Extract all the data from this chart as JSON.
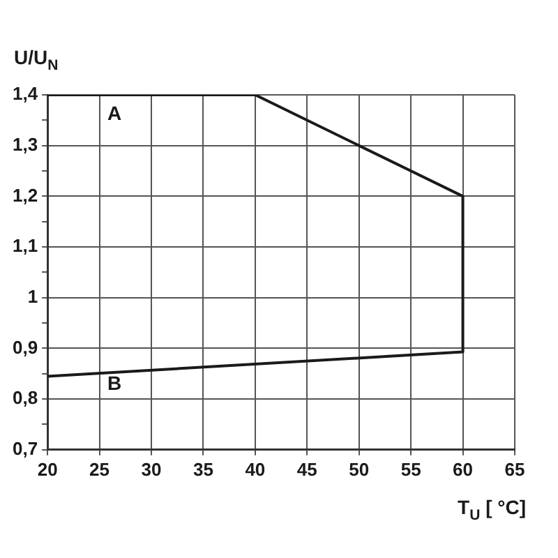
{
  "chart_data": {
    "type": "line",
    "xlabel": "T$_{U}$ [ °C]",
    "ylabel": "U/U$_{N}$",
    "series": [
      {
        "color": "#1a1a1a",
        "x": [
          20,
          60,
          60,
          40,
          20
        ],
        "values": [
          0.845,
          0.893,
          1.2,
          1.4,
          1.4
        ]
      }
    ],
    "xlim": [
      20,
      65
    ],
    "xticks": [
      20,
      25,
      30,
      35,
      40,
      45,
      50,
      55,
      60,
      65
    ],
    "ylim": [
      0.7,
      1.4
    ],
    "yticks": [
      {
        "value": 0.7,
        "label": "0,7"
      },
      {
        "value": 0.75,
        "label": null
      },
      {
        "value": 0.8,
        "label": "0,8"
      },
      {
        "value": 0.85,
        "label": null
      },
      {
        "value": 0.9,
        "label": "0,9"
      },
      {
        "value": 0.95,
        "label": null
      },
      {
        "value": 1,
        "label": "1"
      },
      {
        "value": 1.05,
        "label": null
      },
      {
        "value": 1.1,
        "label": "1,1"
      },
      {
        "value": 1.15,
        "label": null
      },
      {
        "value": 1.2,
        "label": "1,2"
      },
      {
        "value": 1.25,
        "label": null
      },
      {
        "value": 1.3,
        "label": "1,3"
      },
      {
        "value": 1.35,
        "label": null
      },
      {
        "value": 1.4,
        "label": "1,4"
      }
    ],
    "annotations": [
      "A",
      "B"
    ],
    "grid": true,
    "legend": false,
    "marker": "none",
    "line_style": "solid"
  }
}
